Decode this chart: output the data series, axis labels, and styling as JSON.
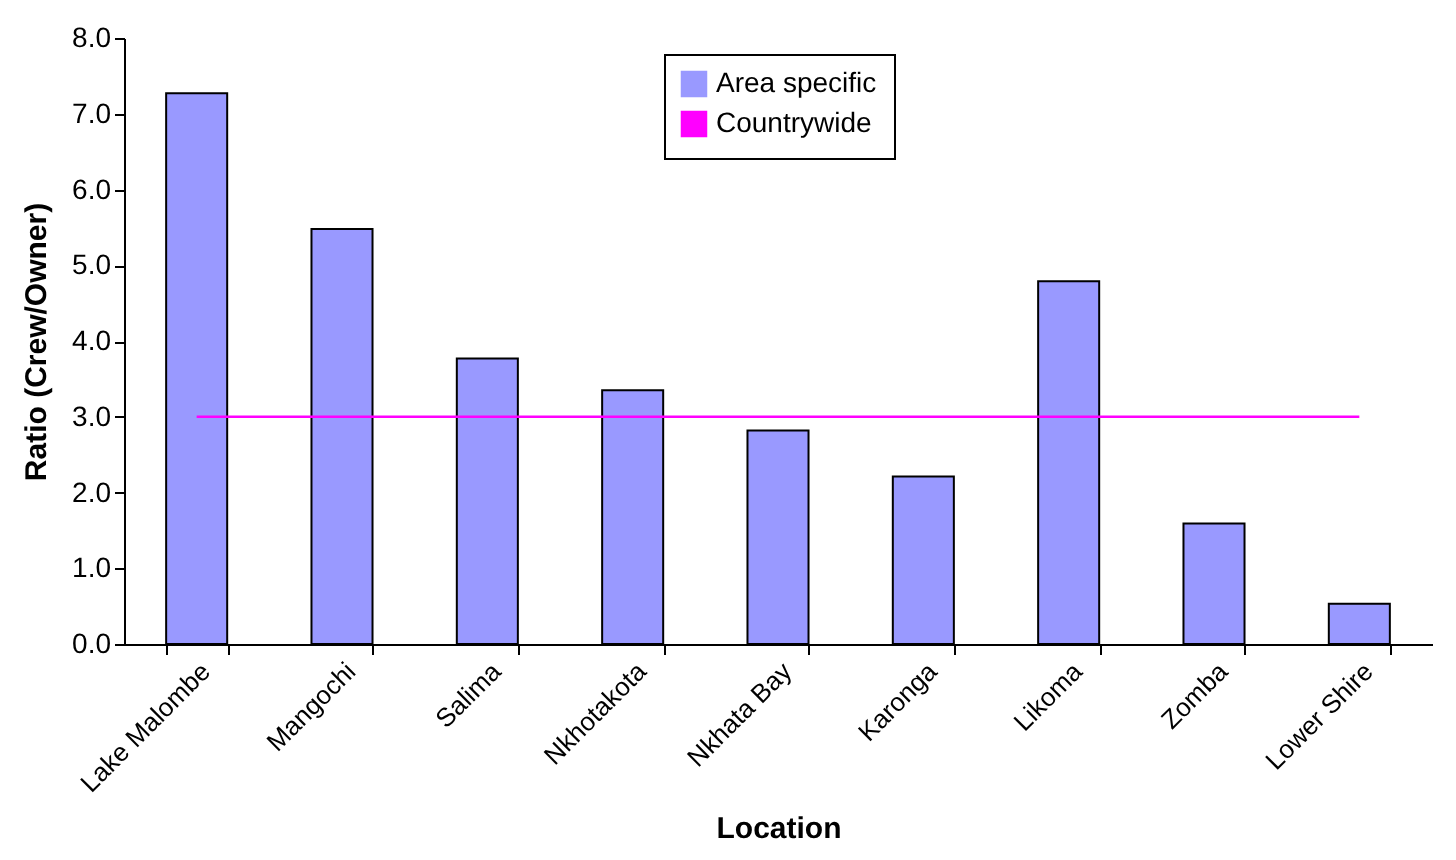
{
  "chart_data": {
    "type": "bar",
    "xlabel": "Location",
    "ylabel": "Ratio (Crew/Owner)",
    "categories": [
      "Lake Malombe",
      "Mangochi",
      "Salima",
      "Nkhotakota",
      "Nkhata Bay",
      "Karonga",
      "Likoma",
      "Zomba",
      "Lower Shire"
    ],
    "series": [
      {
        "name": "Area specific",
        "color": "#9999ff",
        "values": [
          7.27,
          5.48,
          3.77,
          3.35,
          2.82,
          2.21,
          4.79,
          1.59,
          0.53
        ]
      },
      {
        "name": "Countrywide",
        "type": "line",
        "color": "#ff00ff",
        "values": [
          3.0,
          3.0,
          3.0,
          3.0,
          3.0,
          3.0,
          3.0,
          3.0,
          3.0
        ]
      }
    ],
    "ylim": [
      0,
      8
    ],
    "yticks": [
      {
        "value": 0,
        "label": "0.0"
      },
      {
        "value": 1,
        "label": "1.0"
      },
      {
        "value": 2,
        "label": "2.0"
      },
      {
        "value": 3,
        "label": "3.0"
      },
      {
        "value": 4,
        "label": "4.0"
      },
      {
        "value": 5,
        "label": "5.0"
      },
      {
        "value": 6,
        "label": "6.0"
      },
      {
        "value": 7,
        "label": "7.0"
      },
      {
        "value": 8,
        "label": "8.0"
      }
    ],
    "grid": false,
    "legend": "top",
    "marker": "none",
    "line_style": "solid"
  }
}
